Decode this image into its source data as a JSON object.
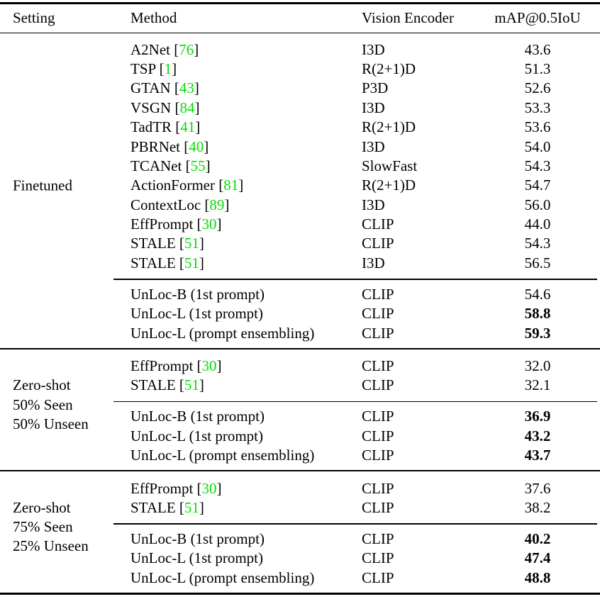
{
  "table": {
    "columns": [
      "Setting",
      "Method",
      "Vision Encoder",
      "mAP@0.5IoU"
    ],
    "citation_color": "#00DF00",
    "sections": [
      {
        "setting_lines": [
          "Finetuned"
        ],
        "groups": [
          {
            "rows": [
              {
                "method": "A2Net",
                "cite": "76",
                "encoder": "I3D",
                "map": "43.6",
                "bold": false
              },
              {
                "method": "TSP",
                "cite": "1",
                "encoder": "R(2+1)D",
                "map": "51.3",
                "bold": false
              },
              {
                "method": "GTAN",
                "cite": "43",
                "encoder": "P3D",
                "map": "52.6",
                "bold": false
              },
              {
                "method": "VSGN",
                "cite": "84",
                "encoder": "I3D",
                "map": "53.3",
                "bold": false
              },
              {
                "method": "TadTR",
                "cite": "41",
                "encoder": "R(2+1)D",
                "map": "53.6",
                "bold": false
              },
              {
                "method": "PBRNet",
                "cite": "40",
                "encoder": "I3D",
                "map": "54.0",
                "bold": false
              },
              {
                "method": "TCANet",
                "cite": "55",
                "encoder": "SlowFast",
                "map": "54.3",
                "bold": false
              },
              {
                "method": "ActionFormer",
                "cite": "81",
                "encoder": "R(2+1)D",
                "map": "54.7",
                "bold": false
              },
              {
                "method": "ContextLoc",
                "cite": "89",
                "encoder": "I3D",
                "map": "56.0",
                "bold": false
              },
              {
                "method": "EffPrompt",
                "cite": "30",
                "encoder": "CLIP",
                "map": "44.0",
                "bold": false
              },
              {
                "method": "STALE",
                "cite": "51",
                "encoder": "CLIP",
                "map": "54.3",
                "bold": false
              },
              {
                "method": "STALE",
                "cite": "51",
                "encoder": "I3D",
                "map": "56.5",
                "bold": false
              }
            ]
          },
          {
            "rows": [
              {
                "method": "UnLoc-B (1st prompt)",
                "cite": null,
                "encoder": "CLIP",
                "map": "54.6",
                "bold": false
              },
              {
                "method": "UnLoc-L (1st prompt)",
                "cite": null,
                "encoder": "CLIP",
                "map": "58.8",
                "bold": true
              },
              {
                "method": "UnLoc-L (prompt ensembling)",
                "cite": null,
                "encoder": "CLIP",
                "map": "59.3",
                "bold": true
              }
            ]
          }
        ]
      },
      {
        "setting_lines": [
          "Zero-shot",
          "50% Seen",
          "50% Unseen"
        ],
        "groups": [
          {
            "rows": [
              {
                "method": "EffPrompt",
                "cite": "30",
                "encoder": "CLIP",
                "map": "32.0",
                "bold": false
              },
              {
                "method": "STALE",
                "cite": "51",
                "encoder": "CLIP",
                "map": "32.1",
                "bold": false
              }
            ]
          },
          {
            "rows": [
              {
                "method": "UnLoc-B (1st prompt)",
                "cite": null,
                "encoder": "CLIP",
                "map": "36.9",
                "bold": true
              },
              {
                "method": "UnLoc-L (1st prompt)",
                "cite": null,
                "encoder": "CLIP",
                "map": "43.2",
                "bold": true
              },
              {
                "method": "UnLoc-L (prompt ensembling)",
                "cite": null,
                "encoder": "CLIP",
                "map": "43.7",
                "bold": true
              }
            ]
          }
        ]
      },
      {
        "setting_lines": [
          "Zero-shot",
          "75% Seen",
          "25% Unseen"
        ],
        "groups": [
          {
            "rows": [
              {
                "method": "EffPrompt",
                "cite": "30",
                "encoder": "CLIP",
                "map": "37.6",
                "bold": false
              },
              {
                "method": "STALE",
                "cite": "51",
                "encoder": "CLIP",
                "map": "38.2",
                "bold": false
              }
            ]
          },
          {
            "rows": [
              {
                "method": "UnLoc-B (1st prompt)",
                "cite": null,
                "encoder": "CLIP",
                "map": "40.2",
                "bold": true
              },
              {
                "method": "UnLoc-L (1st prompt)",
                "cite": null,
                "encoder": "CLIP",
                "map": "47.4",
                "bold": true
              },
              {
                "method": "UnLoc-L (prompt ensembling)",
                "cite": null,
                "encoder": "CLIP",
                "map": "48.8",
                "bold": true
              }
            ]
          }
        ]
      }
    ]
  }
}
